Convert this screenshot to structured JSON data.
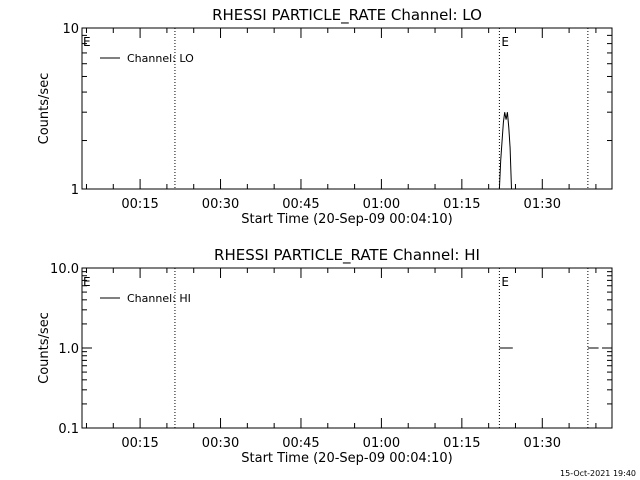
{
  "footer": {
    "timestamp": "15-Oct-2021 19:40"
  },
  "chart_data": [
    {
      "type": "line",
      "title": "RHESSI PARTICLE_RATE Channel: LO",
      "xlabel": "Start Time (20-Sep-09 00:04:10)",
      "ylabel": "Counts/sec",
      "y_scale": "log",
      "ylim": [
        1,
        10
      ],
      "yticks": [
        {
          "value": 1,
          "label": "1"
        },
        {
          "value": 10,
          "label": "10"
        }
      ],
      "xlim": [
        "00:04:10",
        "01:43:00"
      ],
      "xticks": [
        "00:15",
        "00:30",
        "00:45",
        "01:00",
        "01:15",
        "01:30"
      ],
      "legend": {
        "position": "top-left",
        "entries": [
          "Channel: LO"
        ]
      },
      "markers": [
        {
          "time": "00:21:30",
          "label": ""
        },
        {
          "time": "01:22:00",
          "label": "E"
        },
        {
          "time": "01:38:30",
          "label": ""
        }
      ],
      "start_marker_label": "E",
      "series": [
        {
          "name": "Channel: LO",
          "points": [
            [
              "01:22:00",
              1.0
            ],
            [
              "01:22:15",
              1.5
            ],
            [
              "01:22:30",
              2.0
            ],
            [
              "01:22:45",
              2.6
            ],
            [
              "01:23:00",
              3.0
            ],
            [
              "01:23:15",
              2.7
            ],
            [
              "01:23:30",
              3.0
            ],
            [
              "01:23:45",
              2.4
            ],
            [
              "01:24:00",
              1.8
            ],
            [
              "01:24:15",
              1.0
            ]
          ]
        }
      ]
    },
    {
      "type": "line",
      "title": "RHESSI PARTICLE_RATE Channel: HI",
      "xlabel": "Start Time (20-Sep-09 00:04:10)",
      "ylabel": "Counts/sec",
      "y_scale": "log",
      "ylim": [
        0.1,
        10
      ],
      "yticks": [
        {
          "value": 0.1,
          "label": "0.1"
        },
        {
          "value": 1,
          "label": "1.0"
        },
        {
          "value": 10,
          "label": "10.0"
        }
      ],
      "xlim": [
        "00:04:10",
        "01:43:00"
      ],
      "xticks": [
        "00:15",
        "00:30",
        "00:45",
        "01:00",
        "01:15",
        "01:30"
      ],
      "legend": {
        "position": "top-left",
        "entries": [
          "Channel: HI"
        ]
      },
      "markers": [
        {
          "time": "00:21:30",
          "label": ""
        },
        {
          "time": "01:22:00",
          "label": "E"
        },
        {
          "time": "01:38:30",
          "label": ""
        }
      ],
      "start_marker_label": "E",
      "series": [
        {
          "name": "Channel: HI",
          "segments": [
            [
              [
                "01:22:00",
                1.0
              ],
              [
                "01:24:30",
                1.0
              ]
            ],
            [
              [
                "01:38:30",
                1.0
              ],
              [
                "01:40:30",
                1.0
              ]
            ]
          ]
        }
      ]
    }
  ]
}
